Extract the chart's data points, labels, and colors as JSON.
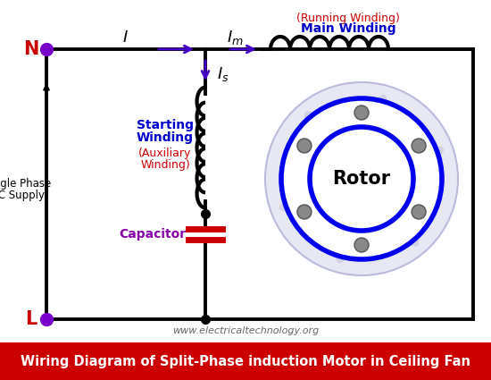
{
  "title": "Wiring Diagram of Split-Phase induction Motor in Ceiling Fan",
  "title_bg": "#cc0000",
  "title_color": "#ffffff",
  "website": "www.electricaltechnology.org",
  "bg_color": "#ffffff",
  "N_label": "N",
  "L_label": "L",
  "NL_color": "#cc0000",
  "arrow_color": "#4400cc",
  "running_label1": "(Running Winding)",
  "running_label2": "Main Winding",
  "running_color1": "#cc0000",
  "running_color2": "#0000cc",
  "starting_label1": "Starting",
  "starting_label2": "Winding",
  "auxiliary_label1": "(Auxiliary",
  "auxiliary_label2": "Winding)",
  "starting_color": "#0000cc",
  "auxiliary_color": "#cc0000",
  "capacitor_label": "Capacitor",
  "capacitor_color": "#8800aa",
  "rotor_label": "Rotor",
  "rotor_color": "#0000ee",
  "supply_label1": "Single Phase",
  "supply_label2": "AC Supply",
  "line_color": "#000000",
  "wire_lw": 2.8,
  "coil_color": "#000000",
  "cap_color": "#cc0000",
  "stator_bg": "#e8e8f5",
  "stator_edge": "#bbbbdd",
  "pole_color": "#888888",
  "dot_color": "#7700cc"
}
